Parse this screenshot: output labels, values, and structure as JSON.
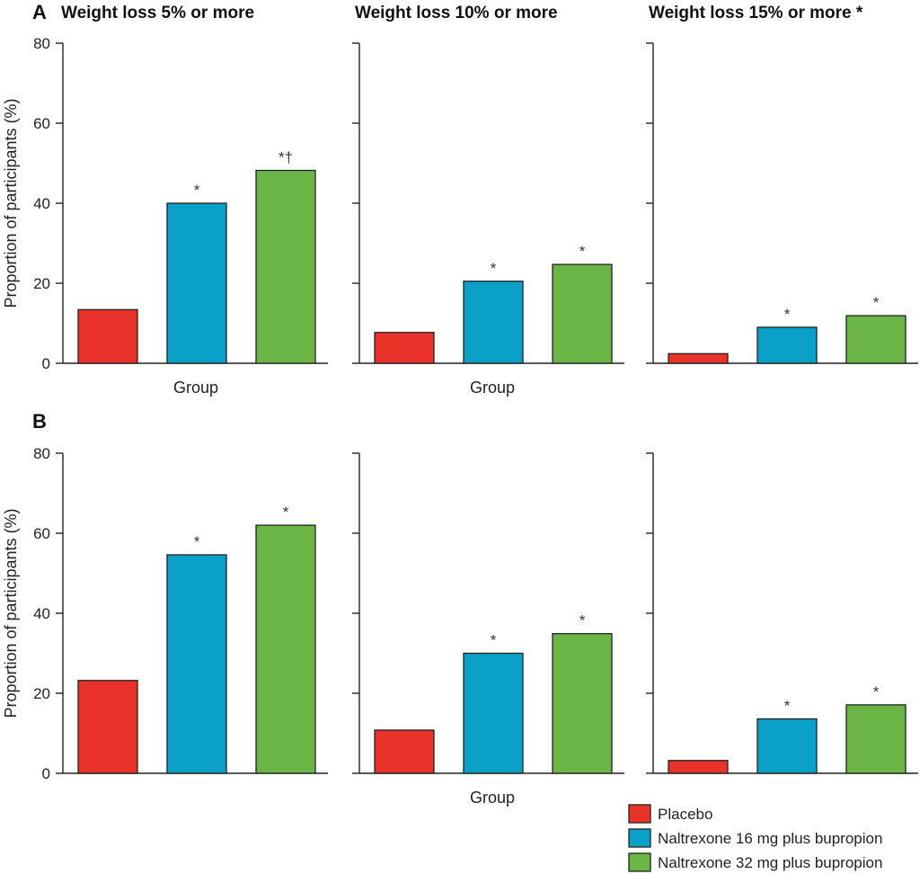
{
  "colors": {
    "placebo": "#e8322a",
    "nb16": "#0aa0c8",
    "nb32": "#6ab546"
  },
  "legend": [
    {
      "name": "Placebo",
      "color": "#e8322a"
    },
    {
      "name": "Naltrexone 16 mg plus bupropion",
      "color": "#0aa0c8"
    },
    {
      "name": "Naltrexone 32 mg plus bupropion",
      "color": "#6ab546"
    }
  ],
  "chart_data": [
    {
      "type": "bar",
      "panel": "A",
      "title": "Weight loss 5% or more",
      "ylabel": "Proportion of participants (%)",
      "xlabel": "Group",
      "ylim": [
        0,
        80
      ],
      "yticks": [
        "0",
        "20",
        "40",
        "60",
        "80"
      ],
      "values": [
        13.4,
        40.0,
        48.2
      ],
      "annotations": [
        "",
        "*",
        "*†"
      ]
    },
    {
      "type": "bar",
      "panel": "",
      "title": "Weight loss 10% or more",
      "ylabel": "",
      "xlabel": "Group",
      "ylim": [
        0,
        80
      ],
      "yticks": [
        "",
        "",
        "",
        "",
        ""
      ],
      "values": [
        7.7,
        20.5,
        24.7
      ],
      "annotations": [
        "",
        "*",
        "*"
      ]
    },
    {
      "type": "bar",
      "panel": "",
      "title": "Weight loss 15% or more *",
      "ylabel": "",
      "xlabel": "",
      "ylim": [
        0,
        80
      ],
      "yticks": [
        "",
        "",
        "",
        "",
        ""
      ],
      "values": [
        2.4,
        9.0,
        11.9
      ],
      "annotations": [
        "",
        "*",
        "*"
      ]
    },
    {
      "type": "bar",
      "panel": "B",
      "title": "",
      "ylabel": "Proportion of participants (%)",
      "xlabel": "",
      "ylim": [
        0,
        80
      ],
      "yticks": [
        "0",
        "20",
        "40",
        "60",
        "80"
      ],
      "values": [
        23.2,
        54.6,
        62.0
      ],
      "annotations": [
        "",
        "*",
        "*"
      ]
    },
    {
      "type": "bar",
      "panel": "",
      "title": "",
      "ylabel": "",
      "xlabel": "Group",
      "ylim": [
        0,
        80
      ],
      "yticks": [
        "",
        "",
        "",
        "",
        ""
      ],
      "values": [
        10.8,
        30.0,
        34.9
      ],
      "annotations": [
        "",
        "*",
        "*"
      ]
    },
    {
      "type": "bar",
      "panel": "",
      "title": "",
      "ylabel": "",
      "xlabel": "",
      "ylim": [
        0,
        80
      ],
      "yticks": [
        "",
        "",
        "",
        "",
        ""
      ],
      "values": [
        3.2,
        13.6,
        17.1
      ],
      "annotations": [
        "",
        "*",
        "*"
      ]
    }
  ]
}
